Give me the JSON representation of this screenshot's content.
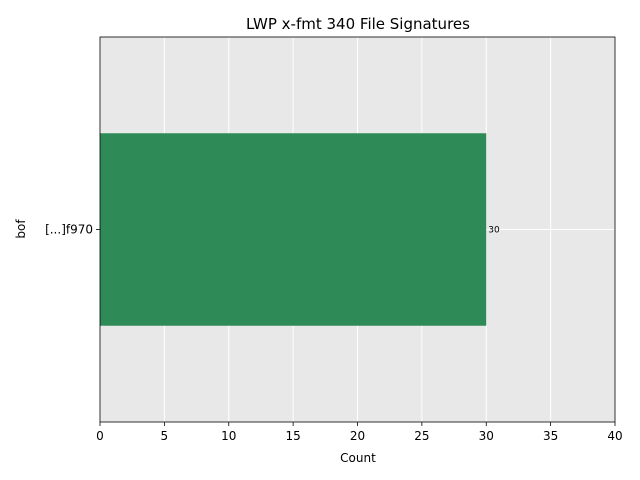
{
  "chart_data": {
    "type": "bar",
    "orientation": "horizontal",
    "title": "LWP x-fmt 340 File Signatures",
    "xlabel": "Count",
    "ylabel": "bof",
    "categories": [
      "[...]f970"
    ],
    "values": [
      30
    ],
    "data_labels": [
      "30"
    ],
    "xlim": [
      0,
      40
    ],
    "xticks": [
      0,
      5,
      10,
      15,
      20,
      25,
      30,
      35,
      40
    ],
    "grid": true,
    "legend": "none",
    "colors": {
      "bar": "#2e8b57",
      "plot_background": "#e8e8e8",
      "grid": "#ffffff"
    }
  }
}
